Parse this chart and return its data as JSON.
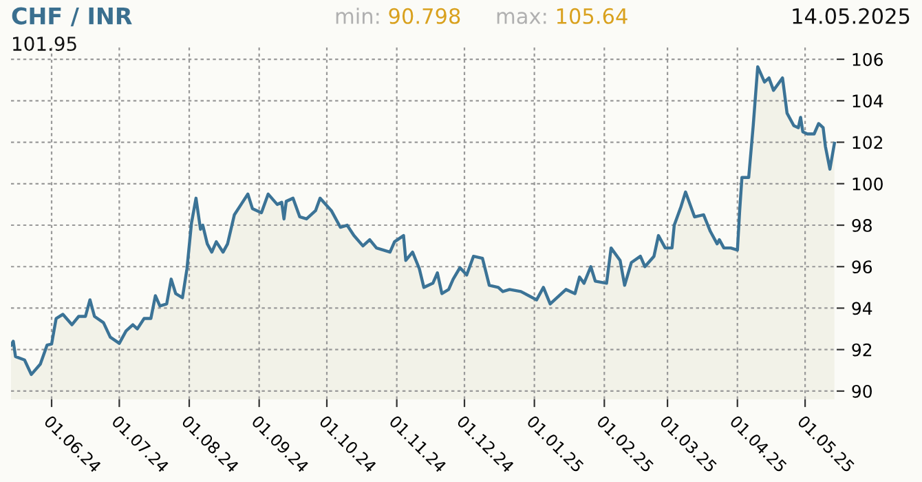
{
  "chart_data": {
    "type": "area",
    "title": "CHF / INR",
    "annotations": [
      "min: 90.798",
      "max: 105.64",
      "14.05.2025",
      "101.95"
    ],
    "x": [
      "2024-05-14",
      "2024-05-15",
      "2024-05-16",
      "2024-05-20",
      "2024-05-23",
      "2024-05-27",
      "2024-05-30",
      "2024-06-01",
      "2024-06-03",
      "2024-06-06",
      "2024-06-10",
      "2024-06-13",
      "2024-06-16",
      "2024-06-18",
      "2024-06-20",
      "2024-06-24",
      "2024-06-27",
      "2024-07-01",
      "2024-07-04",
      "2024-07-07",
      "2024-07-09",
      "2024-07-12",
      "2024-07-15",
      "2024-07-17",
      "2024-07-19",
      "2024-07-22",
      "2024-07-24",
      "2024-07-26",
      "2024-07-29",
      "2024-07-31",
      "2024-08-02",
      "2024-08-04",
      "2024-08-06",
      "2024-08-07",
      "2024-08-09",
      "2024-08-11",
      "2024-08-13",
      "2024-08-16",
      "2024-08-18",
      "2024-08-21",
      "2024-08-24",
      "2024-08-27",
      "2024-08-29",
      "2024-09-02",
      "2024-09-05",
      "2024-09-09",
      "2024-09-11",
      "2024-09-12",
      "2024-09-13",
      "2024-09-16",
      "2024-09-19",
      "2024-09-22",
      "2024-09-26",
      "2024-09-28",
      "2024-10-03",
      "2024-10-07",
      "2024-10-10",
      "2024-10-13",
      "2024-10-17",
      "2024-10-20",
      "2024-10-23",
      "2024-10-29",
      "2024-10-31",
      "2024-11-04",
      "2024-11-05",
      "2024-11-08",
      "2024-11-11",
      "2024-11-13",
      "2024-11-17",
      "2024-11-19",
      "2024-11-21",
      "2024-11-24",
      "2024-11-26",
      "2024-11-29",
      "2024-12-02",
      "2024-12-05",
      "2024-12-09",
      "2024-12-12",
      "2024-12-16",
      "2024-12-18",
      "2024-12-21",
      "2024-12-26",
      "2025-01-02",
      "2025-01-05",
      "2025-01-08",
      "2025-01-12",
      "2025-01-15",
      "2025-01-19",
      "2025-01-21",
      "2025-01-23",
      "2025-01-26",
      "2025-01-28",
      "2025-02-02",
      "2025-02-04",
      "2025-02-08",
      "2025-02-10",
      "2025-02-13",
      "2025-02-17",
      "2025-02-19",
      "2025-02-23",
      "2025-02-25",
      "2025-02-28",
      "2025-03-03",
      "2025-03-04",
      "2025-03-07",
      "2025-03-09",
      "2025-03-13",
      "2025-03-17",
      "2025-03-20",
      "2025-03-23",
      "2025-03-24",
      "2025-03-26",
      "2025-03-29",
      "2025-04-01",
      "2025-04-02",
      "2025-04-03",
      "2025-04-06",
      "2025-04-08",
      "2025-04-10",
      "2025-04-13",
      "2025-04-15",
      "2025-04-17",
      "2025-04-21",
      "2025-04-23",
      "2025-04-26",
      "2025-04-28",
      "2025-04-29",
      "2025-04-30",
      "2025-05-02",
      "2025-05-05",
      "2025-05-07",
      "2025-05-09",
      "2025-05-10",
      "2025-05-12",
      "2025-05-14"
    ],
    "series": [
      {
        "color": "#3b7396",
        "values": [
          92.22,
          92.4,
          91.66,
          91.5,
          90.8,
          91.3,
          92.22,
          92.27,
          93.5,
          93.7,
          93.2,
          93.6,
          93.6,
          94.4,
          93.6,
          93.3,
          92.6,
          92.3,
          92.9,
          93.2,
          93.0,
          93.5,
          93.5,
          94.6,
          94.1,
          94.2,
          95.4,
          94.7,
          94.5,
          95.9,
          98.1,
          99.3,
          97.8,
          98.0,
          97.1,
          96.7,
          97.2,
          96.7,
          97.1,
          98.5,
          99.0,
          99.5,
          98.8,
          98.6,
          99.5,
          99.0,
          99.1,
          98.3,
          99.15,
          99.3,
          98.4,
          98.3,
          98.7,
          99.3,
          98.7,
          97.9,
          98.0,
          97.5,
          97.0,
          97.3,
          96.9,
          96.7,
          97.2,
          97.5,
          96.3,
          96.7,
          95.9,
          95.0,
          95.2,
          95.7,
          94.7,
          94.9,
          95.4,
          95.95,
          95.6,
          96.5,
          96.4,
          95.1,
          95.0,
          94.8,
          94.9,
          94.8,
          94.4,
          95.0,
          94.2,
          94.6,
          94.9,
          94.7,
          95.5,
          95.2,
          96.0,
          95.3,
          95.2,
          96.9,
          96.3,
          95.1,
          96.2,
          96.5,
          96.0,
          96.5,
          97.5,
          96.9,
          96.9,
          98.0,
          98.9,
          99.6,
          98.4,
          98.5,
          97.7,
          97.1,
          97.3,
          96.9,
          96.9,
          96.8,
          98.7,
          100.3,
          100.3,
          102.8,
          105.64,
          104.9,
          105.1,
          104.5,
          105.1,
          103.4,
          102.8,
          102.7,
          103.2,
          102.5,
          102.4,
          102.4,
          102.9,
          102.7,
          101.8,
          100.7,
          101.95
        ]
      }
    ],
    "xlim": [
      "2024-05-14",
      "2025-05-15"
    ],
    "xticks": [
      {
        "value": "2024-06-01",
        "label": "01.06.24"
      },
      {
        "value": "2024-07-01",
        "label": "01.07.24"
      },
      {
        "value": "2024-08-01",
        "label": "01.08.24"
      },
      {
        "value": "2024-09-01",
        "label": "01.09.24"
      },
      {
        "value": "2024-10-01",
        "label": "01.10.24"
      },
      {
        "value": "2024-11-01",
        "label": "01.11.24"
      },
      {
        "value": "2024-12-01",
        "label": "01.12.24"
      },
      {
        "value": "2025-01-01",
        "label": "01.01.25"
      },
      {
        "value": "2025-02-01",
        "label": "01.02.25"
      },
      {
        "value": "2025-03-01",
        "label": "01.03.25"
      },
      {
        "value": "2025-04-01",
        "label": "01.04.25"
      },
      {
        "value": "2025-05-01",
        "label": "01.05.25"
      }
    ],
    "ylim": [
      89.6,
      106.6
    ],
    "yticks": [
      90,
      92,
      94,
      96,
      98,
      100,
      102,
      104,
      106
    ],
    "grid": true,
    "legend": false,
    "line_style": "solid"
  }
}
